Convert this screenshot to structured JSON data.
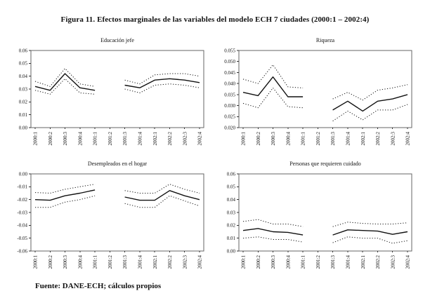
{
  "figure": {
    "title": "Figura 11. Efectos marginales de las variables del modelo ECH 7 ciudades (2000:1 – 2002:4)",
    "source_note": "Fuente: DANE-ECH; cálculos propios"
  },
  "chart_data": [
    {
      "type": "line",
      "title": "Educación jefe",
      "categories": [
        "2000:1",
        "2000:2",
        "2000:3",
        "2000:4",
        "2001:1",
        "2001:2",
        "2001:3",
        "2001:4",
        "2002:1",
        "2002:2",
        "2002:3",
        "2002:4"
      ],
      "series": [
        {
          "name": "banda-superior",
          "style": "dotted",
          "values": [
            0.036,
            0.032,
            0.046,
            0.034,
            0.032,
            null,
            0.037,
            0.034,
            0.041,
            0.042,
            0.042,
            0.04
          ]
        },
        {
          "name": "efecto-marginal",
          "style": "solid",
          "values": [
            0.032,
            0.029,
            0.042,
            0.031,
            0.029,
            null,
            0.033,
            0.031,
            0.037,
            0.038,
            0.037,
            0.035
          ]
        },
        {
          "name": "banda-inferior",
          "style": "dotted",
          "values": [
            0.029,
            0.026,
            0.038,
            0.027,
            0.026,
            null,
            0.03,
            0.027,
            0.033,
            0.034,
            0.033,
            0.031
          ]
        }
      ],
      "ylim": [
        0.0,
        0.06
      ],
      "yticks": [
        "0.06",
        "0.05",
        "0.04",
        "0.03",
        "0.02",
        "0.01",
        "0.00"
      ],
      "xlabel": "",
      "ylabel": "",
      "grid": false,
      "legend": "none"
    },
    {
      "type": "line",
      "title": "Riqueza",
      "categories": [
        "2000:1",
        "2000:2",
        "2000:3",
        "2000:4",
        "2001:1",
        "2001:2",
        "2001:3",
        "2001:4",
        "2002:1",
        "2002:2",
        "2002:3",
        "2002:4"
      ],
      "series": [
        {
          "name": "banda-superior",
          "style": "dotted",
          "values": [
            0.042,
            0.04,
            0.0485,
            0.0385,
            0.038,
            null,
            0.033,
            0.036,
            0.0325,
            0.037,
            0.038,
            0.0395
          ]
        },
        {
          "name": "efecto-marginal",
          "style": "solid",
          "values": [
            0.036,
            0.0345,
            0.043,
            0.034,
            0.034,
            null,
            0.028,
            0.032,
            0.0275,
            0.032,
            0.033,
            0.035
          ]
        },
        {
          "name": "banda-inferior",
          "style": "dotted",
          "values": [
            0.031,
            0.029,
            0.038,
            0.0295,
            0.029,
            null,
            0.023,
            0.0275,
            0.0235,
            0.028,
            0.028,
            0.0305
          ]
        }
      ],
      "ylim": [
        0.02,
        0.055
      ],
      "yticks": [
        "0.055",
        "0.050",
        "0.045",
        "0.040",
        "0.035",
        "0.030",
        "0.025",
        "0.020"
      ],
      "xlabel": "",
      "ylabel": "",
      "grid": false,
      "legend": "none"
    },
    {
      "type": "line",
      "title": "Desempleados en el hogar",
      "categories": [
        "2000:1",
        "2000:2",
        "2000:3",
        "2000:4",
        "2001:1",
        "2001:2",
        "2001:3",
        "2001:4",
        "2002:1",
        "2002:2",
        "2002:3",
        "2002:4"
      ],
      "series": [
        {
          "name": "banda-superior",
          "style": "dotted",
          "values": [
            -0.0145,
            -0.015,
            -0.012,
            -0.01,
            -0.008,
            null,
            -0.013,
            -0.015,
            -0.015,
            -0.008,
            -0.012,
            -0.015
          ]
        },
        {
          "name": "efecto-marginal",
          "style": "solid",
          "values": [
            -0.02,
            -0.0205,
            -0.017,
            -0.015,
            -0.0125,
            null,
            -0.018,
            -0.0205,
            -0.0205,
            -0.013,
            -0.017,
            -0.02
          ]
        },
        {
          "name": "banda-inferior",
          "style": "dotted",
          "values": [
            -0.026,
            -0.026,
            -0.022,
            -0.02,
            -0.017,
            null,
            -0.023,
            -0.026,
            -0.026,
            -0.017,
            -0.021,
            -0.025
          ]
        }
      ],
      "ylim": [
        -0.06,
        0.0
      ],
      "yticks": [
        "0.00",
        "-0.01",
        "-0.02",
        "-0.03",
        "-0.04",
        "-0.05",
        "-0.06"
      ],
      "xlabel": "",
      "ylabel": "",
      "grid": false,
      "legend": "none"
    },
    {
      "type": "line",
      "title": "Personas que requieren cuidado",
      "categories": [
        "2000:1",
        "2000:2",
        "2000:3",
        "2000:4",
        "2001:1",
        "2001:2",
        "2001:3",
        "2001:4",
        "2002:1",
        "2002:2",
        "2002:3",
        "2002:4"
      ],
      "series": [
        {
          "name": "banda-superior",
          "style": "dotted",
          "values": [
            0.023,
            0.0245,
            0.021,
            0.021,
            0.019,
            null,
            0.019,
            0.0225,
            0.0215,
            0.021,
            0.021,
            0.022
          ]
        },
        {
          "name": "efecto-marginal",
          "style": "solid",
          "values": [
            0.016,
            0.0175,
            0.015,
            0.0145,
            0.0125,
            null,
            0.0125,
            0.0165,
            0.016,
            0.0155,
            0.013,
            0.015
          ]
        },
        {
          "name": "banda-inferior",
          "style": "dotted",
          "values": [
            0.01,
            0.011,
            0.009,
            0.009,
            0.007,
            null,
            0.0065,
            0.011,
            0.01,
            0.01,
            0.006,
            0.008
          ]
        }
      ],
      "ylim": [
        0.0,
        0.06
      ],
      "yticks": [
        "0.06",
        "0.05",
        "0.04",
        "0.03",
        "0.02",
        "0.01",
        "0.00"
      ],
      "xlabel": "",
      "ylabel": "",
      "grid": false,
      "legend": "none"
    }
  ],
  "style": {
    "line_color": "#111111",
    "border_color": "#666666",
    "background": "#ffffff"
  }
}
